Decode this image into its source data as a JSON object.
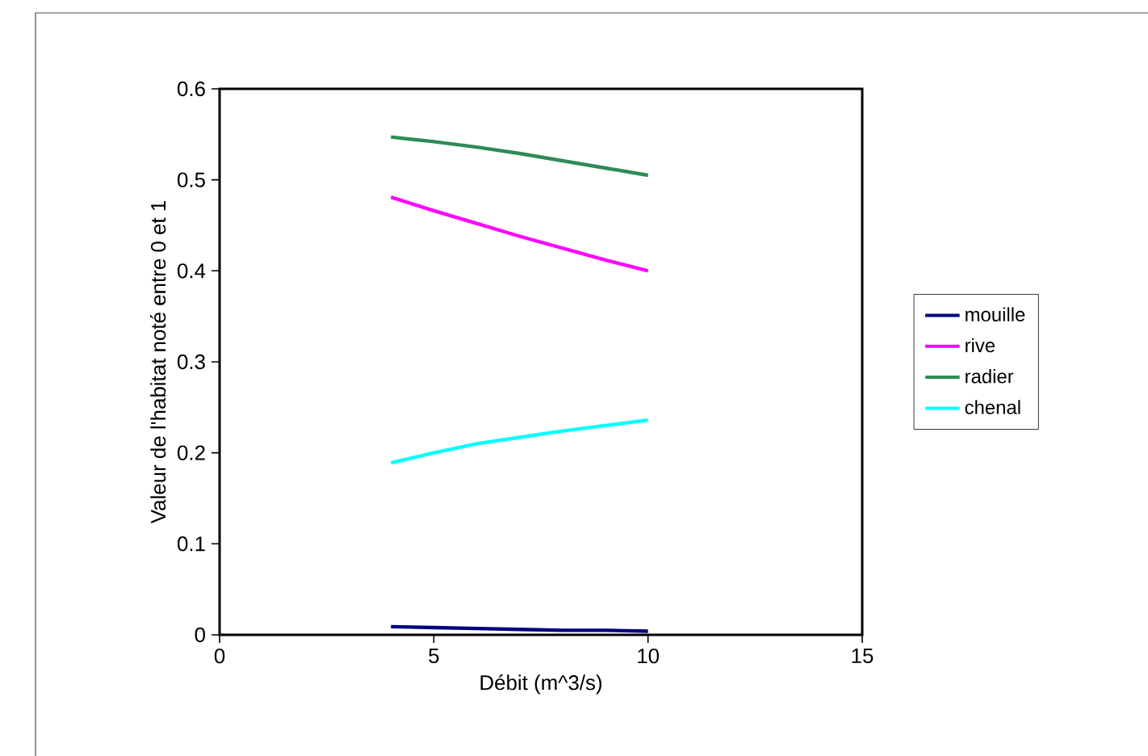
{
  "chart_data": {
    "type": "line",
    "xlabel": "Débit (m^3/s)",
    "ylabel": "Valeur de l'habitat noté entre 0 et 1",
    "x": [
      4,
      5,
      6,
      7,
      8,
      9,
      10
    ],
    "series": [
      {
        "name": "mouille",
        "color": "#000080",
        "values": [
          0.009,
          0.008,
          0.007,
          0.006,
          0.005,
          0.005,
          0.004
        ]
      },
      {
        "name": "rive",
        "color": "#ff00ff",
        "values": [
          0.481,
          0.466,
          0.452,
          0.438,
          0.425,
          0.412,
          0.4
        ]
      },
      {
        "name": "radier",
        "color": "#2e8b57",
        "values": [
          0.547,
          0.542,
          0.536,
          0.529,
          0.521,
          0.513,
          0.505
        ]
      },
      {
        "name": "chenal",
        "color": "#00ffff",
        "values": [
          0.189,
          0.2,
          0.21,
          0.217,
          0.224,
          0.23,
          0.236
        ]
      }
    ],
    "xlim": [
      0,
      15
    ],
    "xticks": [
      0,
      5,
      10,
      15
    ],
    "ylim": [
      0,
      0.6
    ],
    "yticks": [
      0,
      0.1,
      0.2,
      0.3,
      0.4,
      0.5,
      0.6
    ],
    "grid": false,
    "legend": "right",
    "marker": "none",
    "line_style": "solid"
  }
}
